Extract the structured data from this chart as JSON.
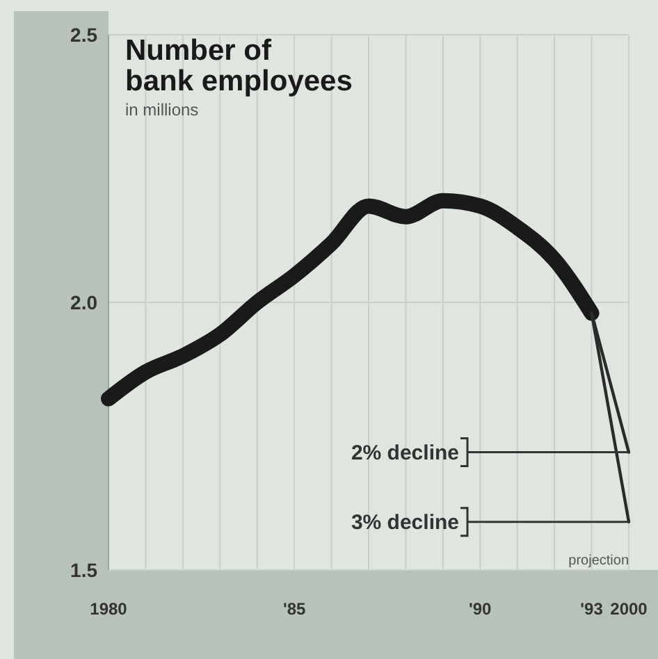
{
  "chart_data": {
    "type": "line",
    "title": "Number of bank employees",
    "subtitle": "in millions",
    "annotations": [
      "projection"
    ],
    "categories": [
      "1980",
      null,
      null,
      null,
      null,
      "'85",
      null,
      null,
      null,
      null,
      "'90",
      null,
      null,
      "'93",
      "2000"
    ],
    "ylim": [
      1.5,
      2.5
    ],
    "yticks": [
      1.5,
      {
        "value": 2,
        "label": "2.0"
      },
      2.5
    ],
    "grid": true,
    "legend": "bottom right",
    "line_style": "solid",
    "series": [
      {
        "color": "#1a1a1a",
        "values": [
          1.82,
          1.87,
          1.9,
          1.94,
          2.0,
          2.05,
          2.11,
          2.18,
          2.16,
          2.19,
          2.18,
          2.14,
          2.08,
          1.98,
          null
        ]
      },
      {
        "name": "2% decline",
        "color": "#2b2b2b",
        "values": [
          null,
          null,
          null,
          null,
          null,
          null,
          null,
          null,
          null,
          null,
          null,
          null,
          null,
          1.98,
          1.72
        ]
      },
      {
        "name": "3% decline",
        "color": "#2b2b2b",
        "values": [
          null,
          null,
          null,
          null,
          null,
          null,
          null,
          null,
          null,
          null,
          null,
          null,
          null,
          1.98,
          1.59
        ]
      }
    ]
  }
}
